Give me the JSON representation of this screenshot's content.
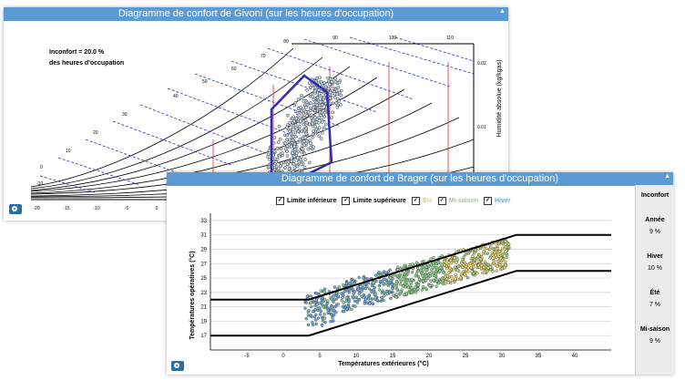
{
  "givoni": {
    "title": "Diagramme de confort de Givoni (sur les heures d'occupation)",
    "inconfort_line1": "Inconfort = 20.0 %",
    "inconfort_line2": "des heures d'occupation",
    "y_label": "Humidité absolue (kg/kgas)",
    "y_ticks": [
      "0.02",
      "0.01"
    ],
    "top_ticks": [
      "80",
      "90",
      "100",
      "110"
    ],
    "rh_ticks": [
      "70",
      "60",
      "50",
      "40",
      "30",
      "20",
      "10",
      "0",
      "-10"
    ],
    "x_ticks": [
      "-20",
      "-15",
      "-10",
      "-5",
      "0"
    ]
  },
  "brager": {
    "title": "Diagramme de confort de Brager (sur les heures d'occupation)",
    "legend": [
      {
        "label": "Limite inférieure",
        "color": "#000000"
      },
      {
        "label": "Limite supérieure",
        "color": "#000000"
      },
      {
        "label": "Été",
        "color": "#e8d56b"
      },
      {
        "label": "Mi-saison",
        "color": "#8fd18f"
      },
      {
        "label": "Hiver",
        "color": "#6fa8dc"
      }
    ],
    "side": {
      "header": "Inconfort",
      "rows": [
        {
          "label": "Année",
          "value": "9 %"
        },
        {
          "label": "Hiver",
          "value": "10 %"
        },
        {
          "label": "Été",
          "value": "7 %"
        },
        {
          "label": "Mi-saison",
          "value": "9 %"
        }
      ]
    },
    "chart_data": {
      "type": "scatter",
      "xlabel": "Températures extérieures (°C)",
      "ylabel": "Températures opératives (°C)",
      "xlim": [
        -10,
        45
      ],
      "ylim": [
        15,
        34
      ],
      "x_ticks": [
        -5,
        0,
        5,
        10,
        15,
        20,
        25,
        30,
        35,
        40
      ],
      "y_ticks": [
        17,
        19,
        21,
        23,
        25,
        27,
        29,
        31,
        33
      ],
      "upper_limit": {
        "x": [
          -10,
          3.5,
          32,
          45
        ],
        "y": [
          22,
          22,
          31,
          31
        ]
      },
      "lower_limit": {
        "x": [
          -10,
          3.5,
          32,
          45
        ],
        "y": [
          17,
          17,
          26,
          26
        ]
      }
    }
  }
}
